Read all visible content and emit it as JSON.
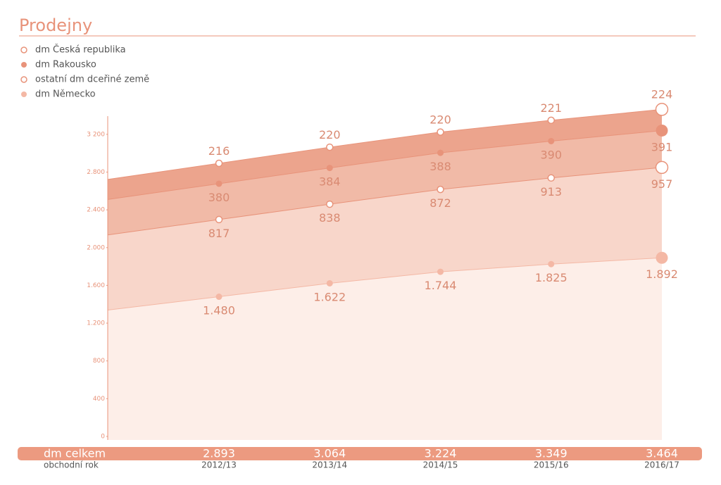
{
  "chart_data": {
    "type": "stacked-area",
    "title": "Prodejny",
    "categories": [
      "2012/13",
      "2013/14",
      "2014/15",
      "2015/16",
      "2016/17"
    ],
    "x_label": "obchodní rok",
    "ylim": [
      0,
      3400
    ],
    "yticks": [
      0,
      400,
      800,
      {
        "value": 1200,
        "label": "1.200"
      },
      {
        "value": 1600,
        "label": "1.600"
      },
      {
        "value": 2000,
        "label": "2.000"
      },
      {
        "value": 2400,
        "label": "2.400"
      },
      {
        "value": 2800,
        "label": "2.800"
      },
      {
        "value": 3200,
        "label": "3 200"
      }
    ],
    "series": [
      {
        "name": "dm Německo",
        "color": "#f4b8a5",
        "fill": "#fdeee8",
        "marker": "filled",
        "label_position": "below",
        "values": [
          1480,
          1622,
          1744,
          1825,
          1892
        ],
        "value_labels": [
          "1.480",
          "1.622",
          "1.744",
          "1.825",
          "1.892"
        ]
      },
      {
        "name": "ostatní dm dceřiné země",
        "color": "#e8937a",
        "fill": "#f8d6ca",
        "marker": "open",
        "label_position": "below",
        "values": [
          817,
          838,
          872,
          913,
          957
        ]
      },
      {
        "name": "dm Rakousko",
        "color": "#e8937a",
        "fill": "#f1baa7",
        "marker": "filled",
        "label_position": "below",
        "values": [
          380,
          384,
          388,
          390,
          391
        ]
      },
      {
        "name": "dm Česká republika",
        "color": "#e8937a",
        "fill": "#eca48d",
        "marker": "open",
        "label_position": "above",
        "values": [
          216,
          220,
          220,
          221,
          224
        ]
      }
    ],
    "totals": {
      "label": "dm celkem",
      "color": "#ec9a80",
      "values": [
        2893,
        3064,
        3224,
        3349,
        3464
      ],
      "value_labels": [
        "2.893",
        "3.064",
        "3.224",
        "3.349",
        "3.464"
      ]
    }
  }
}
